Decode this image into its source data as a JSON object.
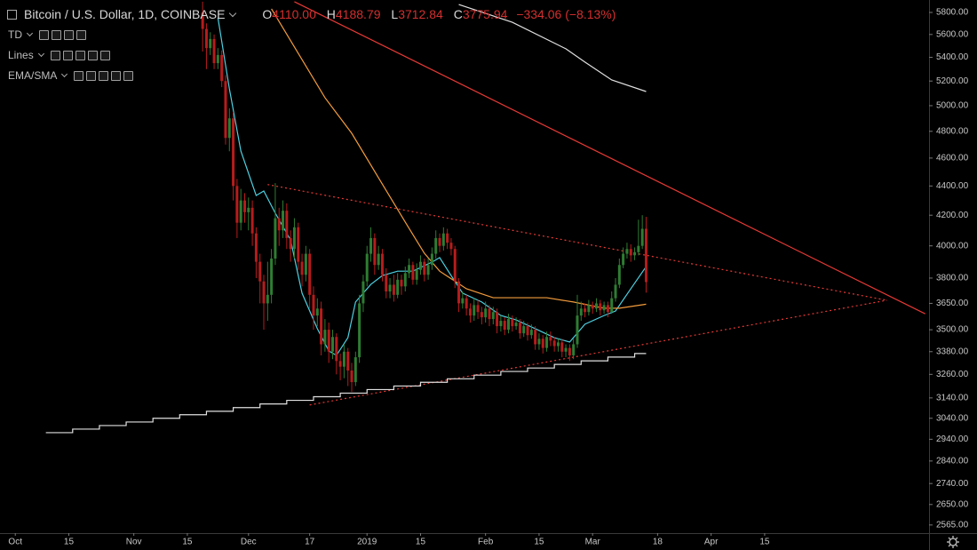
{
  "header": {
    "title": "Bitcoin / U.S. Dollar, 1D, COINBASE",
    "ohlc": [
      {
        "key": "O",
        "value": "4110.00"
      },
      {
        "key": "H",
        "value": "4188.79"
      },
      {
        "key": "L",
        "value": "3712.84"
      },
      {
        "key": "C",
        "value": "3775.94"
      }
    ],
    "change": "−334.06 (−8.13%)"
  },
  "indicators": [
    "TD",
    "Lines",
    "EMA/SMA"
  ],
  "chart_data": {
    "type": "candlestick",
    "log_scale": true,
    "grid": false,
    "up_color": "#2e7d32",
    "down_color": "#b71c1c",
    "xlim": [
      "2018-09-27",
      "2019-05-28"
    ],
    "ylim": [
      2532,
      5916
    ],
    "xticks": [
      {
        "value": "2018-10-01",
        "label": "Oct"
      },
      {
        "value": "2018-10-15",
        "label": "15"
      },
      {
        "value": "2018-11-01",
        "label": "Nov"
      },
      {
        "value": "2018-11-15",
        "label": "15"
      },
      {
        "value": "2018-12-01",
        "label": "Dec"
      },
      {
        "value": "2018-12-17",
        "label": "17"
      },
      {
        "value": "2019-01-01",
        "label": "2019"
      },
      {
        "value": "2019-01-15",
        "label": "15"
      },
      {
        "value": "2019-02-01",
        "label": "Feb"
      },
      {
        "value": "2019-02-15",
        "label": "15"
      },
      {
        "value": "2019-03-01",
        "label": "Mar"
      },
      {
        "value": "2019-03-18",
        "label": "18"
      },
      {
        "value": "2019-04-01",
        "label": "Apr"
      },
      {
        "value": "2019-04-15",
        "label": "15"
      }
    ],
    "yticks": [
      {
        "value": 5800,
        "label": "5800.00"
      },
      {
        "value": 5600,
        "label": "5600.00"
      },
      {
        "value": 5400,
        "label": "5400.00"
      },
      {
        "value": 5200,
        "label": "5200.00"
      },
      {
        "value": 5000,
        "label": "5000.00"
      },
      {
        "value": 4800,
        "label": "4800.00"
      },
      {
        "value": 4600,
        "label": "4600.00"
      },
      {
        "value": 4400,
        "label": "4400.00"
      },
      {
        "value": 4200,
        "label": "4200.00"
      },
      {
        "value": 4000,
        "label": "4000.00"
      },
      {
        "value": 3800,
        "label": "3800.00"
      },
      {
        "value": 3650,
        "label": "3650.00"
      },
      {
        "value": 3500,
        "label": "3500.00"
      },
      {
        "value": 3380,
        "label": "3380.00"
      },
      {
        "value": 3260,
        "label": "3260.00"
      },
      {
        "value": 3140,
        "label": "3140.00"
      },
      {
        "value": 3040,
        "label": "3040.00"
      },
      {
        "value": 2940,
        "label": "2940.00"
      },
      {
        "value": 2840,
        "label": "2840.00"
      },
      {
        "value": 2740,
        "label": "2740.00"
      },
      {
        "value": 2650,
        "label": "2650.00"
      },
      {
        "value": 2565,
        "label": "2565.00"
      }
    ],
    "x": [
      "2018-11-19",
      "2018-11-20",
      "2018-11-21",
      "2018-11-22",
      "2018-11-23",
      "2018-11-24",
      "2018-11-25",
      "2018-11-26",
      "2018-11-27",
      "2018-11-28",
      "2018-11-29",
      "2018-11-30",
      "2018-12-01",
      "2018-12-02",
      "2018-12-03",
      "2018-12-04",
      "2018-12-05",
      "2018-12-06",
      "2018-12-07",
      "2018-12-08",
      "2018-12-09",
      "2018-12-10",
      "2018-12-11",
      "2018-12-12",
      "2018-12-13",
      "2018-12-14",
      "2018-12-15",
      "2018-12-16",
      "2018-12-17",
      "2018-12-18",
      "2018-12-19",
      "2018-12-20",
      "2018-12-21",
      "2018-12-22",
      "2018-12-23",
      "2018-12-24",
      "2018-12-25",
      "2018-12-26",
      "2018-12-27",
      "2018-12-28",
      "2018-12-29",
      "2018-12-30",
      "2018-12-31",
      "2019-01-01",
      "2019-01-02",
      "2019-01-03",
      "2019-01-04",
      "2019-01-05",
      "2019-01-06",
      "2019-01-07",
      "2019-01-08",
      "2019-01-09",
      "2019-01-10",
      "2019-01-11",
      "2019-01-12",
      "2019-01-13",
      "2019-01-14",
      "2019-01-15",
      "2019-01-16",
      "2019-01-17",
      "2019-01-18",
      "2019-01-19",
      "2019-01-20",
      "2019-01-21",
      "2019-01-22",
      "2019-01-23",
      "2019-01-24",
      "2019-01-25",
      "2019-01-26",
      "2019-01-27",
      "2019-01-28",
      "2019-01-29",
      "2019-01-30",
      "2019-01-31",
      "2019-02-01",
      "2019-02-02",
      "2019-02-03",
      "2019-02-04",
      "2019-02-05",
      "2019-02-06",
      "2019-02-07",
      "2019-02-08",
      "2019-02-09",
      "2019-02-10",
      "2019-02-11",
      "2019-02-12",
      "2019-02-13",
      "2019-02-14",
      "2019-02-15",
      "2019-02-16",
      "2019-02-17",
      "2019-02-18",
      "2019-02-19",
      "2019-02-20",
      "2019-02-21",
      "2019-02-22",
      "2019-02-23",
      "2019-02-24",
      "2019-02-25",
      "2019-02-26",
      "2019-02-27",
      "2019-02-28",
      "2019-03-01",
      "2019-03-02",
      "2019-03-03",
      "2019-03-04",
      "2019-03-05",
      "2019-03-06",
      "2019-03-07",
      "2019-03-08",
      "2019-03-09",
      "2019-03-10",
      "2019-03-11",
      "2019-03-12",
      "2019-03-13",
      "2019-03-14",
      "2019-03-15"
    ],
    "open": [
      5800,
      5650,
      5480,
      5560,
      5350,
      5420,
      5200,
      4750,
      4900,
      4400,
      4150,
      4300,
      4220,
      4250,
      4080,
      3900,
      3780,
      3650,
      3700,
      3920,
      4180,
      4100,
      4230,
      4050,
      3980,
      4120,
      3900,
      3820,
      3950,
      3700,
      3580,
      3620,
      3420,
      3500,
      3380,
      3460,
      3330,
      3300,
      3380,
      3280,
      3220,
      3350,
      3650,
      3780,
      3950,
      4050,
      3880,
      3950,
      3820,
      3720,
      3760,
      3700,
      3790,
      3750,
      3830,
      3880,
      3790,
      3850,
      3900,
      3820,
      3880,
      3950,
      4050,
      4000,
      4080,
      4020,
      3980,
      3780,
      3650,
      3680,
      3620,
      3580,
      3640,
      3600,
      3570,
      3620,
      3560,
      3600,
      3520,
      3550,
      3500,
      3560,
      3520,
      3540,
      3480,
      3520,
      3470,
      3500,
      3420,
      3450,
      3400,
      3460,
      3440,
      3410,
      3430,
      3380,
      3400,
      3360,
      3420,
      3580,
      3620,
      3600,
      3640,
      3620,
      3650,
      3610,
      3640,
      3600,
      3680,
      3760,
      3880,
      3950,
      3980,
      3940,
      3960,
      4000,
      4110
    ],
    "high": [
      5900,
      5700,
      5620,
      5600,
      5480,
      5460,
      5250,
      4980,
      4950,
      4450,
      4380,
      4350,
      4320,
      4300,
      4120,
      3950,
      3820,
      3900,
      3980,
      4420,
      4250,
      4300,
      4280,
      4100,
      4180,
      4150,
      3950,
      4000,
      3980,
      3750,
      3680,
      3660,
      3560,
      3540,
      3500,
      3480,
      3370,
      3420,
      3400,
      3320,
      3380,
      3700,
      3820,
      4000,
      4120,
      4080,
      4000,
      3980,
      3860,
      3800,
      3820,
      3830,
      3820,
      3870,
      3920,
      3900,
      3890,
      3940,
      3920,
      3920,
      3990,
      4100,
      4080,
      4120,
      4110,
      4050,
      4000,
      3800,
      3720,
      3700,
      3650,
      3680,
      3670,
      3630,
      3660,
      3640,
      3630,
      3620,
      3580,
      3570,
      3590,
      3580,
      3570,
      3560,
      3550,
      3540,
      3530,
      3520,
      3480,
      3470,
      3490,
      3490,
      3460,
      3450,
      3450,
      3420,
      3420,
      3450,
      3700,
      3660,
      3650,
      3670,
      3660,
      3680,
      3670,
      3660,
      3660,
      3720,
      3800,
      3920,
      3990,
      4020,
      4010,
      3990,
      4170,
      4200,
      4188.79
    ],
    "low": [
      5450,
      5300,
      5420,
      5300,
      5300,
      5150,
      4700,
      4650,
      4300,
      4050,
      4100,
      4150,
      4100,
      4000,
      3800,
      3650,
      3500,
      3550,
      3650,
      3880,
      4000,
      4050,
      3980,
      3900,
      3920,
      3850,
      3750,
      3780,
      3620,
      3500,
      3520,
      3360,
      3380,
      3320,
      3340,
      3260,
      3230,
      3240,
      3200,
      3170,
      3200,
      3320,
      3600,
      3750,
      3900,
      3820,
      3850,
      3780,
      3680,
      3680,
      3660,
      3680,
      3700,
      3720,
      3800,
      3760,
      3760,
      3820,
      3780,
      3790,
      3850,
      3920,
      3960,
      3970,
      3980,
      3940,
      3740,
      3600,
      3620,
      3580,
      3540,
      3550,
      3560,
      3530,
      3540,
      3520,
      3530,
      3480,
      3490,
      3470,
      3480,
      3490,
      3500,
      3450,
      3460,
      3440,
      3450,
      3390,
      3390,
      3370,
      3380,
      3410,
      3380,
      3380,
      3350,
      3350,
      3330,
      3340,
      3400,
      3550,
      3570,
      3580,
      3590,
      3600,
      3580,
      3590,
      3570,
      3590,
      3660,
      3740,
      3860,
      3920,
      3900,
      3910,
      3940,
      3980,
      3712.84
    ],
    "close": [
      5650,
      5480,
      5560,
      5350,
      5420,
      5200,
      4750,
      4900,
      4400,
      4150,
      4300,
      4220,
      4250,
      4080,
      3900,
      3780,
      3650,
      3700,
      3920,
      4180,
      4100,
      4230,
      4050,
      3980,
      4120,
      3900,
      3820,
      3950,
      3700,
      3580,
      3620,
      3420,
      3500,
      3380,
      3460,
      3330,
      3300,
      3380,
      3280,
      3220,
      3350,
      3650,
      3780,
      3950,
      4050,
      3880,
      3950,
      3820,
      3720,
      3760,
      3700,
      3790,
      3750,
      3830,
      3880,
      3790,
      3850,
      3900,
      3820,
      3880,
      3950,
      4050,
      4000,
      4080,
      4020,
      3980,
      3780,
      3650,
      3680,
      3620,
      3580,
      3640,
      3600,
      3570,
      3620,
      3560,
      3600,
      3520,
      3550,
      3500,
      3560,
      3520,
      3540,
      3480,
      3520,
      3470,
      3500,
      3420,
      3450,
      3400,
      3460,
      3440,
      3410,
      3430,
      3380,
      3400,
      3360,
      3420,
      3580,
      3620,
      3600,
      3640,
      3620,
      3650,
      3610,
      3640,
      3600,
      3680,
      3760,
      3880,
      3950,
      3980,
      3940,
      3960,
      4000,
      4110,
      3775.94
    ],
    "lines": [
      {
        "color": "#4dd0e1",
        "style": "solid",
        "x": [
          "2018-11-23",
          "2018-11-26",
          "2018-11-29",
          "2018-12-03",
          "2018-12-05",
          "2018-12-08",
          "2018-12-12",
          "2018-12-15",
          "2018-12-19",
          "2018-12-22",
          "2018-12-24",
          "2018-12-27",
          "2018-12-29",
          "2019-01-02",
          "2019-01-05",
          "2019-01-09",
          "2019-01-13",
          "2019-01-18",
          "2019-01-20",
          "2019-01-23",
          "2019-01-26",
          "2019-01-31",
          "2019-02-05",
          "2019-02-09",
          "2019-02-14",
          "2019-02-19",
          "2019-02-23",
          "2019-02-27",
          "2019-03-04",
          "2019-03-07",
          "2019-03-11",
          "2019-03-15"
        ],
        "values": [
          5751,
          5136,
          4652,
          4334,
          4365,
          4214,
          4038,
          3710,
          3506,
          3384,
          3360,
          3456,
          3658,
          3762,
          3815,
          3842,
          3842,
          3898,
          3926,
          3815,
          3710,
          3658,
          3580,
          3555,
          3506,
          3456,
          3432,
          3531,
          3580,
          3606,
          3736,
          3870
        ]
      },
      {
        "color": "#f39c3c",
        "style": "solid",
        "x": [
          "2018-12-07",
          "2018-12-14",
          "2018-12-21",
          "2018-12-28",
          "2019-01-04",
          "2019-01-11",
          "2019-01-16",
          "2019-01-20",
          "2019-01-27",
          "2019-02-03",
          "2019-02-10",
          "2019-02-17",
          "2019-02-24",
          "2019-03-04",
          "2019-03-08",
          "2019-03-15"
        ],
        "values": [
          5833,
          5435,
          5064,
          4785,
          4458,
          4154,
          3953,
          3842,
          3736,
          3683,
          3683,
          3683,
          3658,
          3622,
          3622,
          3645
        ]
      },
      {
        "color": "#e0e0e0",
        "style": "solid",
        "x": [
          "2019-01-25",
          "2019-02-08",
          "2019-02-22",
          "2019-02-27",
          "2019-03-06",
          "2019-03-15"
        ],
        "values": [
          5874,
          5710,
          5474,
          5359,
          5209,
          5114
        ]
      },
      {
        "color": "#e0e0e0",
        "style": "step",
        "x": [
          "2018-10-09",
          "2018-10-16",
          "2018-10-23",
          "2018-10-30",
          "2018-11-06",
          "2018-11-13",
          "2018-11-20",
          "2018-11-27",
          "2018-12-04",
          "2018-12-11",
          "2018-12-18",
          "2018-12-25",
          "2019-01-01",
          "2019-01-08",
          "2019-01-15",
          "2019-01-22",
          "2019-01-29",
          "2019-02-05",
          "2019-02-12",
          "2019-02-19",
          "2019-02-26",
          "2019-03-05",
          "2019-03-12",
          "2019-03-15"
        ],
        "values": [
          2971,
          2988,
          3005,
          3022,
          3040,
          3057,
          3074,
          3092,
          3110,
          3128,
          3146,
          3164,
          3182,
          3200,
          3219,
          3237,
          3256,
          3275,
          3293,
          3312,
          3331,
          3351,
          3370,
          3370
        ]
      }
    ],
    "trendlines": [
      {
        "color": "#e53935",
        "style": "solid",
        "points": [
          [
            "2018-12-13",
            5900
          ],
          [
            "2019-05-27",
            3590
          ]
        ]
      },
      {
        "color": "#e53935",
        "style": "dotted",
        "points": [
          [
            "2018-12-06",
            4410
          ],
          [
            "2019-05-17",
            3668
          ]
        ]
      },
      {
        "color": "#e53935",
        "style": "dotted",
        "points": [
          [
            "2018-12-17",
            3105
          ],
          [
            "2019-05-17",
            3668
          ]
        ]
      }
    ]
  }
}
